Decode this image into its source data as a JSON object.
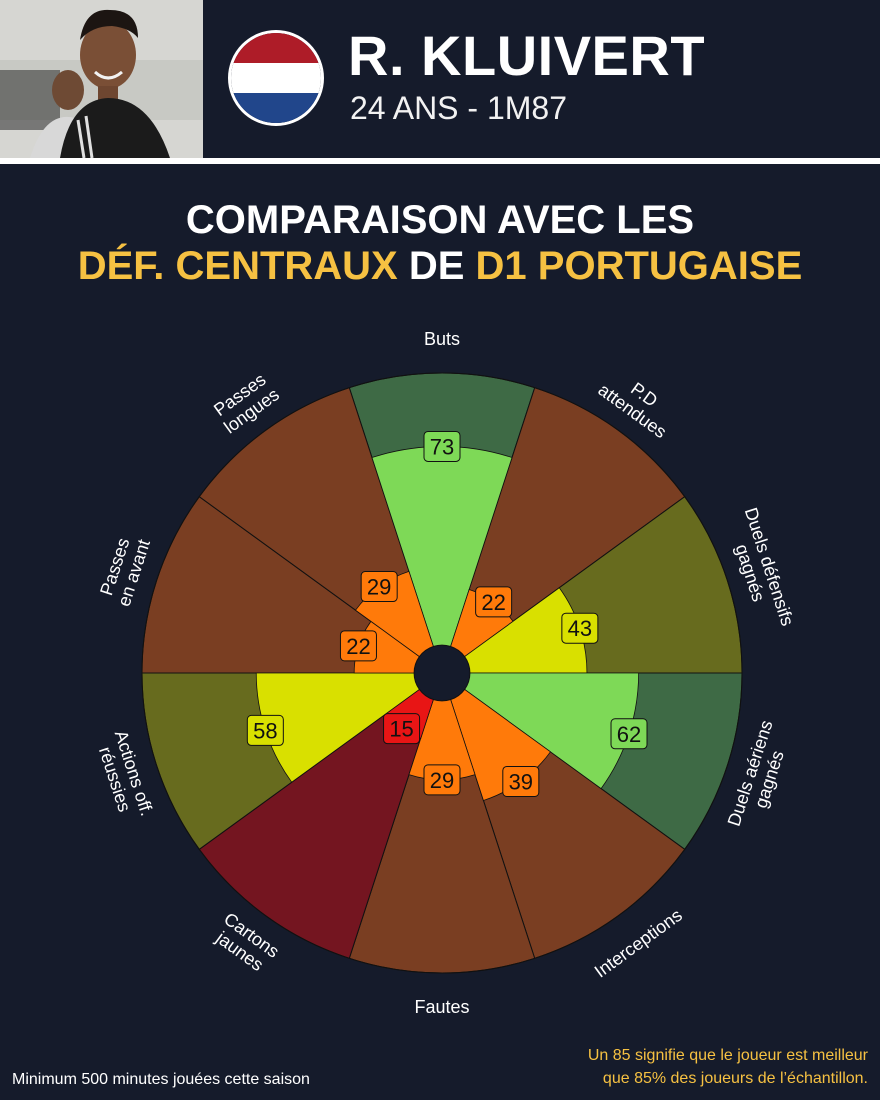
{
  "player": {
    "name": "R. KLUIVERT",
    "info": "24 ANS - 1M87",
    "flag_colors": [
      "#ae1c28",
      "#ffffff",
      "#21468b"
    ]
  },
  "title": {
    "line1": "COMPARAISON AVEC LES",
    "line2_part1": "DÉF. CENTRAUX",
    "line2_part2": " DE ",
    "line2_part3": "D1 PORTUGAISE"
  },
  "chart_data": {
    "type": "pizza",
    "max": 100,
    "segments": [
      {
        "label": "Buts",
        "value": 73,
        "bg": "#3e6a45",
        "fill": "#7ed957"
      },
      {
        "label": "P.D\nattendues",
        "value": 22,
        "bg": "#7a3e22",
        "fill": "#ff7a0a"
      },
      {
        "label": "Duels défensifs\ngagnés",
        "value": 43,
        "bg": "#676b1e",
        "fill": "#d9e000"
      },
      {
        "label": "Duels aériens\ngagnés",
        "value": 62,
        "bg": "#3e6a45",
        "fill": "#7ed957"
      },
      {
        "label": "Interceptions",
        "value": 39,
        "bg": "#7a3e22",
        "fill": "#ff7a0a"
      },
      {
        "label": "Fautes",
        "value": 29,
        "bg": "#7a3e22",
        "fill": "#ff7a0a"
      },
      {
        "label": "Cartons\njaunes",
        "value": 15,
        "bg": "#741520",
        "fill": "#e81515"
      },
      {
        "label": "Actions off.\nréussies",
        "value": 58,
        "bg": "#676b1e",
        "fill": "#d9e000"
      },
      {
        "label": "Passes\nen avant",
        "value": 22,
        "bg": "#7a3e22",
        "fill": "#ff7a0a"
      },
      {
        "label": "Passes\nlongues",
        "value": 29,
        "bg": "#7a3e22",
        "fill": "#ff7a0a"
      }
    ]
  },
  "footer": {
    "left": "Minimum 500 minutes jouées cette saison",
    "right_line1": "Un 85 signifie que le joueur est meilleur",
    "right_line2": "que 85% des joueurs de l’échantillon."
  }
}
